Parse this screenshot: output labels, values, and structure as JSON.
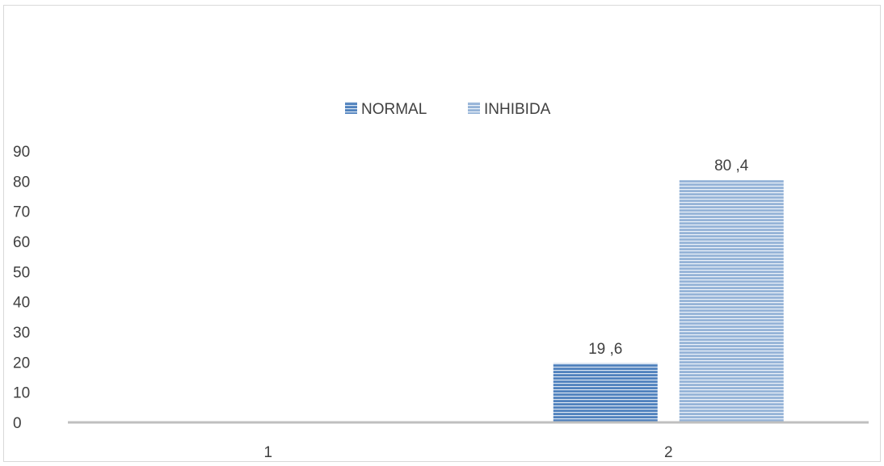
{
  "chart_data": {
    "type": "bar",
    "categories": [
      "1",
      "2"
    ],
    "series": [
      {
        "name": "NORMAL",
        "values": [
          null,
          19.6
        ],
        "labels": [
          "",
          "19 ,6"
        ],
        "color": "#4f81bd"
      },
      {
        "name": "INHIBIDA",
        "values": [
          null,
          80.4
        ],
        "labels": [
          "",
          "80 ,4"
        ],
        "color": "#95b3d7"
      }
    ],
    "title": "",
    "xlabel": "",
    "ylabel": "",
    "ylim": [
      0,
      90
    ],
    "yticks": [
      "0",
      "10",
      "20",
      "30",
      "40",
      "50",
      "60",
      "70",
      "80",
      "90"
    ],
    "grid": false,
    "legend_position": "top-center"
  }
}
